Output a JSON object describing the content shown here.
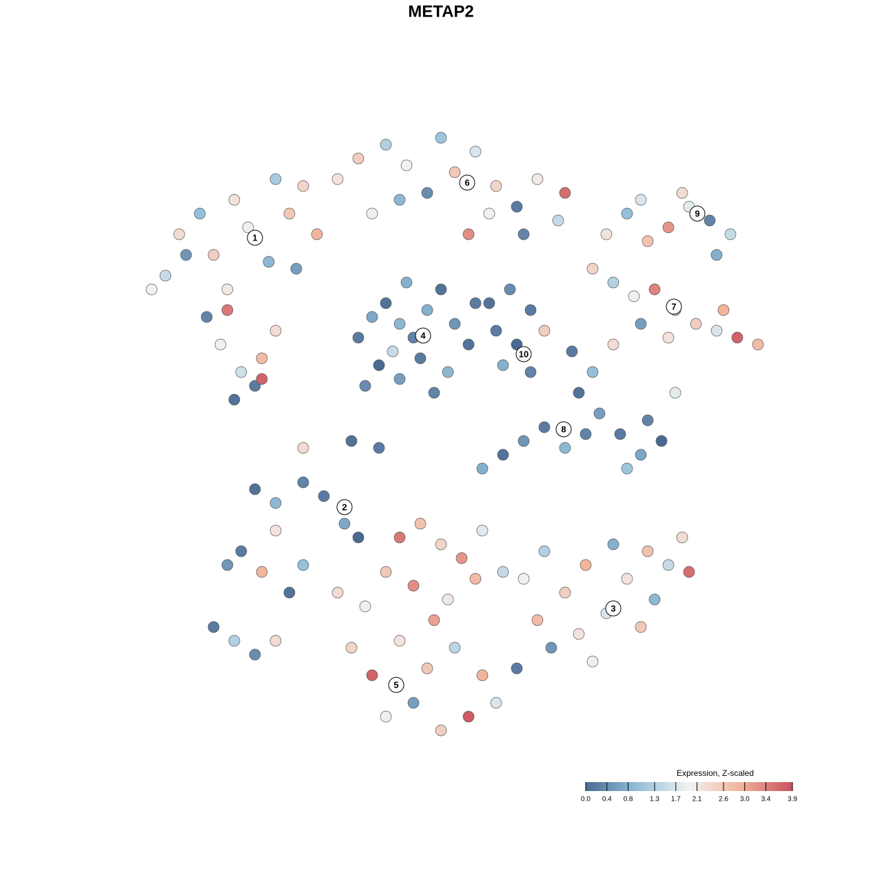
{
  "chart_data": {
    "type": "scatter",
    "title": "METAP2",
    "x": [
      -40,
      -42,
      -38,
      -35,
      -33,
      -30,
      -28,
      -25,
      -22,
      -20,
      -24,
      -31,
      -34,
      -32,
      -29,
      -26,
      -31,
      -27,
      -30,
      -26,
      -24,
      -37,
      -18,
      -21,
      -15,
      -12,
      -8,
      -5,
      -2,
      2,
      5,
      8,
      11,
      14,
      17,
      -10,
      4,
      -6,
      0,
      12,
      18,
      7,
      24,
      27,
      30,
      33,
      36,
      39,
      42,
      35,
      40,
      29,
      22,
      25,
      28,
      31,
      34,
      37,
      40,
      43,
      46,
      33,
      29,
      41,
      -12,
      -10,
      -8,
      -6,
      -4,
      -2,
      0,
      2,
      -9,
      -6,
      -3,
      1,
      4,
      -11,
      -1,
      5,
      -5,
      -7,
      7,
      10,
      13,
      15,
      11,
      9,
      13,
      8,
      19,
      22,
      20,
      23,
      21,
      18,
      15,
      12,
      9,
      6,
      26,
      29,
      32,
      27,
      30,
      25,
      34,
      -27,
      -24,
      -20,
      -17,
      -14,
      -12,
      -24,
      -29,
      -31,
      -26,
      -22,
      -20,
      -33,
      -30,
      -27,
      -24,
      12,
      15,
      18,
      21,
      24,
      27,
      30,
      33,
      36,
      25,
      20,
      16,
      22,
      29,
      31,
      35,
      14,
      -6,
      -3,
      0,
      3,
      6,
      -8,
      -4,
      1,
      5,
      9,
      -11,
      -13,
      -10,
      -6,
      -2,
      2,
      6,
      -8,
      -4,
      0,
      4,
      8,
      11,
      -15,
      -1,
      -20,
      -13,
      -9
    ],
    "y": [
      24,
      22,
      30,
      33,
      27,
      35,
      31,
      26,
      33,
      37,
      38,
      22,
      18,
      14,
      10,
      12,
      19,
      8,
      6,
      9,
      16,
      27,
      30,
      25,
      38,
      41,
      43,
      40,
      36,
      39,
      42,
      37,
      34,
      38,
      32,
      33,
      30,
      35,
      44,
      30,
      36,
      33,
      30,
      33,
      29,
      31,
      34,
      32,
      30,
      36,
      27,
      35,
      25,
      23,
      21,
      22,
      19,
      17,
      16,
      15,
      14,
      15,
      17,
      19,
      15,
      18,
      20,
      17,
      15,
      19,
      22,
      17,
      11,
      9,
      12,
      10,
      14,
      8,
      7,
      20,
      23,
      13,
      20,
      22,
      19,
      16,
      14,
      11,
      10,
      16,
      13,
      10,
      7,
      4,
      1,
      -1,
      2,
      0,
      -2,
      -4,
      1,
      -2,
      0,
      -4,
      3,
      14,
      7,
      -7,
      -9,
      -6,
      -8,
      -12,
      -14,
      -13,
      -16,
      -18,
      -19,
      -22,
      -18,
      -27,
      -29,
      -31,
      -29,
      -20,
      -16,
      -22,
      -18,
      -25,
      -20,
      -16,
      -18,
      -19,
      -15,
      -28,
      -30,
      -32,
      -27,
      -23,
      -14,
      -26,
      -14,
      -12,
      -15,
      -17,
      -13,
      -19,
      -21,
      -23,
      -20,
      -19,
      -24,
      -30,
      -34,
      -29,
      -33,
      -30,
      -34,
      -40,
      -38,
      -42,
      -40,
      -38,
      -33,
      -22,
      -26,
      -1,
      0,
      -1
    ],
    "values": [
      1.5,
      2.0,
      2.3,
      1.0,
      2.5,
      2.2,
      1.9,
      0.9,
      2.6,
      2.4,
      1.2,
      2.1,
      0.3,
      2.0,
      1.6,
      2.8,
      3.5,
      0.2,
      0.1,
      3.7,
      2.3,
      0.5,
      2.9,
      0.6,
      2.2,
      2.5,
      1.3,
      2.0,
      0.4,
      2.6,
      1.7,
      2.4,
      0.2,
      2.1,
      1.5,
      1.9,
      3.3,
      0.9,
      1.1,
      0.3,
      3.6,
      2.0,
      2.2,
      1.0,
      2.7,
      3.2,
      1.8,
      0.3,
      1.5,
      2.3,
      0.8,
      1.7,
      2.4,
      1.3,
      2.0,
      3.4,
      1.2,
      2.5,
      1.7,
      3.7,
      2.8,
      2.2,
      0.6,
      2.9,
      0.2,
      0.7,
      0.1,
      0.9,
      0.3,
      0.8,
      0.1,
      0.5,
      0.0,
      0.6,
      0.2,
      0.9,
      0.1,
      0.4,
      0.3,
      0.2,
      0.8,
      1.5,
      0.1,
      0.4,
      0.2,
      2.5,
      0.0,
      0.8,
      0.3,
      0.2,
      0.2,
      1.0,
      0.1,
      0.6,
      0.3,
      0.9,
      0.2,
      0.5,
      0.1,
      0.8,
      0.2,
      0.7,
      0.0,
      1.1,
      0.3,
      2.3,
      1.8,
      0.1,
      0.9,
      0.3,
      0.2,
      0.7,
      0.0,
      2.2,
      0.2,
      0.5,
      2.9,
      0.1,
      1.0,
      0.2,
      1.3,
      0.4,
      2.3,
      2.0,
      1.3,
      2.5,
      2.9,
      1.7,
      2.2,
      2.7,
      1.5,
      3.6,
      0.8,
      2.2,
      0.5,
      1.9,
      2.6,
      0.9,
      2.3,
      2.8,
      3.5,
      2.7,
      2.4,
      3.2,
      1.8,
      2.6,
      3.3,
      2.1,
      2.8,
      1.5,
      1.9,
      2.4,
      3.7,
      2.2,
      2.6,
      1.4,
      2.9,
      2.0,
      0.6,
      2.5,
      3.8,
      1.7,
      0.2,
      2.3,
      3.1,
      2.3,
      0.1,
      0.2
    ],
    "xlim": [
      -45,
      50
    ],
    "ylim": [
      -46,
      46
    ],
    "clusters": {
      "labels": [
        "1",
        "2",
        "3",
        "4",
        "5",
        "6",
        "7",
        "8",
        "9",
        "10"
      ],
      "x": [
        -27,
        -14,
        25,
        -2.6,
        -6.5,
        3.8,
        33.8,
        17.8,
        37.2,
        12
      ],
      "y": [
        29.5,
        -9.6,
        -24.3,
        15.3,
        -35.4,
        37.5,
        19.5,
        1.7,
        33,
        12.6
      ]
    },
    "colorbar": {
      "title": "Expression, Z-scaled",
      "lim": [
        0,
        3.9
      ],
      "ticks": [
        {
          "value": 0,
          "label": "0.0"
        },
        0.4,
        0.8,
        1.3,
        1.7,
        2.1,
        2.6,
        {
          "value": 3,
          "label": "3.0"
        },
        3.4,
        3.9
      ],
      "colors": [
        "#4b6a92",
        "#92bfda",
        "#f2f2f2",
        "#f1b39a",
        "#c9505e"
      ]
    }
  }
}
